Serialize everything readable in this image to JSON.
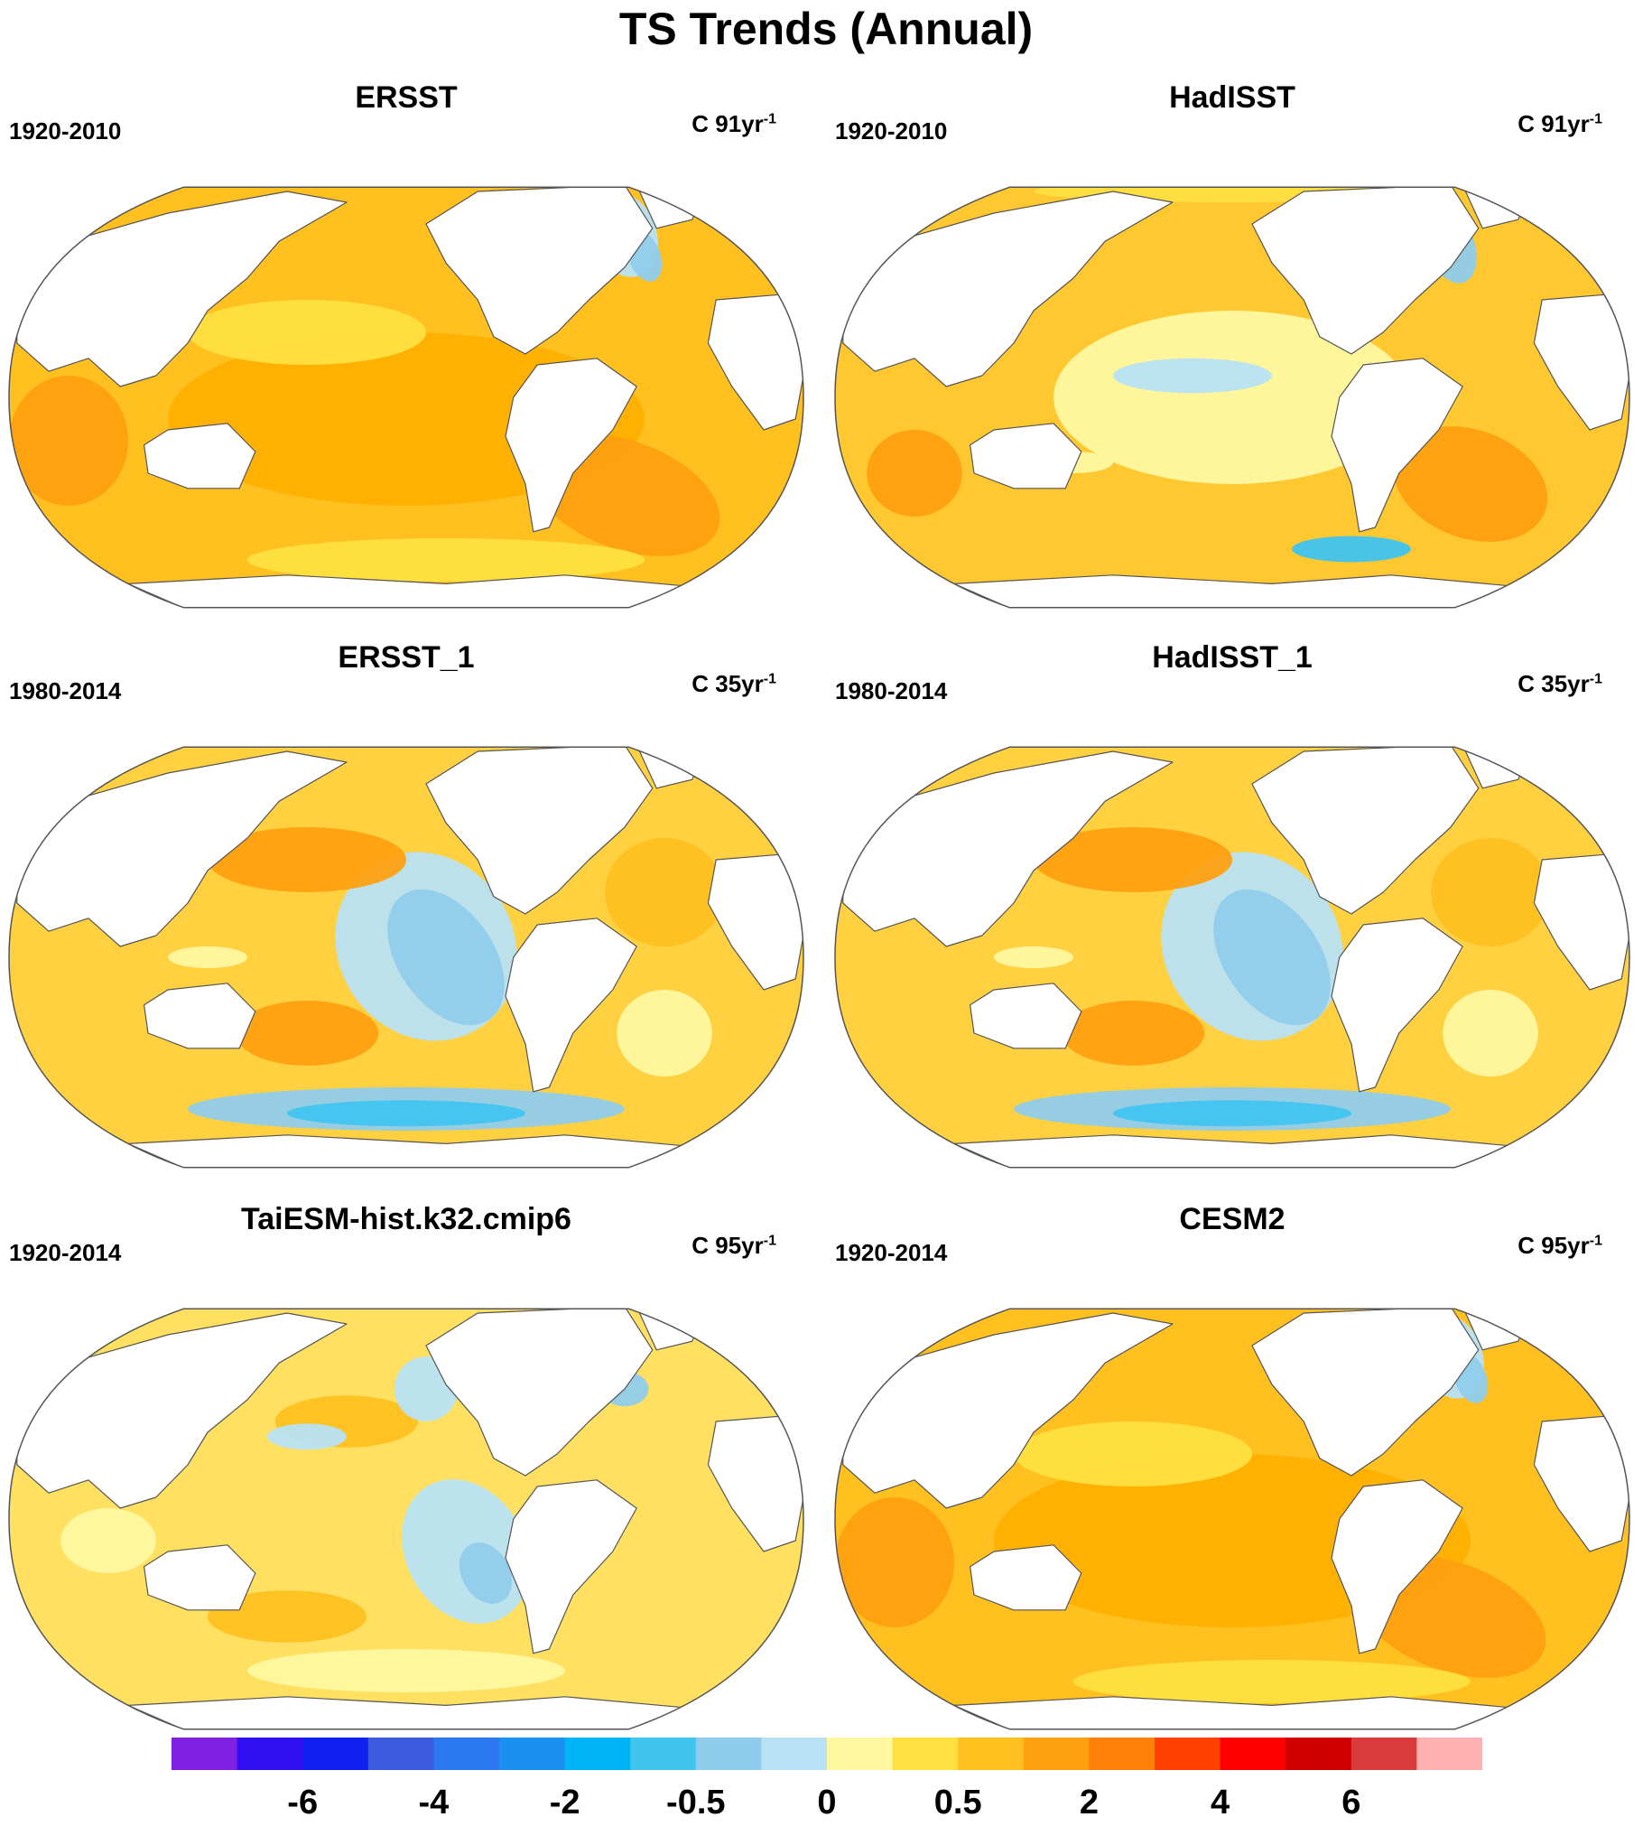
{
  "title": "TS Trends (Annual)",
  "panels": [
    {
      "title": "ERSST",
      "period": "1920-2010",
      "units": "C 91yr",
      "units_exp": "-1",
      "pattern": "warm",
      "base": "#ffc020"
    },
    {
      "title": "HadISST",
      "period": "1920-2010",
      "units": "C 91yr",
      "units_exp": "-1",
      "pattern": "mixed",
      "base": "#ffc830"
    },
    {
      "title": "ERSST_1",
      "period": "1980-2014",
      "units": "C 35yr",
      "units_exp": "-1",
      "pattern": "lanina",
      "base": "#ffd040"
    },
    {
      "title": "HadISST_1",
      "period": "1980-2014",
      "units": "C 35yr",
      "units_exp": "-1",
      "pattern": "lanina",
      "base": "#ffd040"
    },
    {
      "title": "TaiESM-hist.k32.cmip6",
      "period": "1920-2014",
      "units": "C 95yr",
      "units_exp": "-1",
      "pattern": "mild",
      "base": "#ffe060"
    },
    {
      "title": "CESM2",
      "period": "1920-2014",
      "units": "C 95yr",
      "units_exp": "-1",
      "pattern": "warm",
      "base": "#ffc020"
    }
  ],
  "colorbar": {
    "colors": [
      "#8020e0",
      "#3010f0",
      "#1020f0",
      "#3c5ce0",
      "#2c78f0",
      "#1c90f0",
      "#00b4f8",
      "#40c4f0",
      "#90ccec",
      "#b8e2f4",
      "#fff8a0",
      "#ffe040",
      "#ffc020",
      "#ffa010",
      "#ff8008",
      "#ff4000",
      "#ff0000",
      "#d00000",
      "#d83c3c",
      "#ffb0b0"
    ],
    "labels": [
      "-6",
      "-4",
      "-2",
      "-0.5",
      "0",
      "0.5",
      "2",
      "4",
      "6"
    ]
  }
}
